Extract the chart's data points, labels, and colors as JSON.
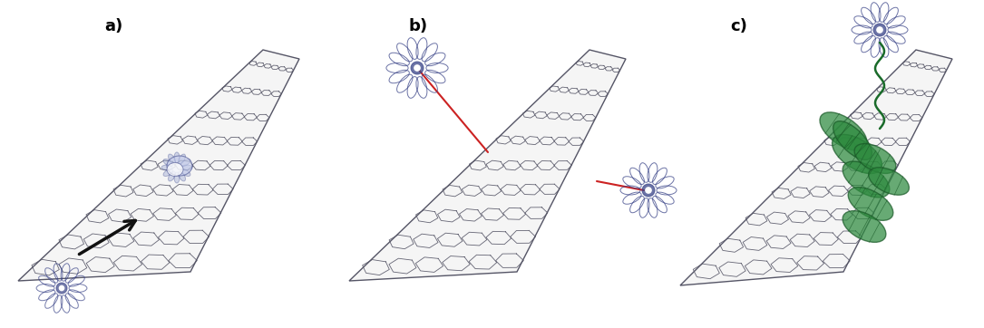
{
  "background_color": "#ffffff",
  "figsize": [
    10.85,
    3.62
  ],
  "dpi": 100,
  "labels": [
    "a)",
    "b)",
    "c)"
  ],
  "label_fontsize": 13,
  "flower_color_blue": "#3a4488",
  "flower_color_green": "#1a6b2a",
  "red_line_color": "#cc2222",
  "arrow_color": "#111111",
  "blue_blob_color": "#8899cc",
  "cnt_body": "#f5f5f5",
  "cnt_edge": "#555566",
  "green_patch": "#2d8a3e",
  "green_patch_edge": "#1a5a28"
}
